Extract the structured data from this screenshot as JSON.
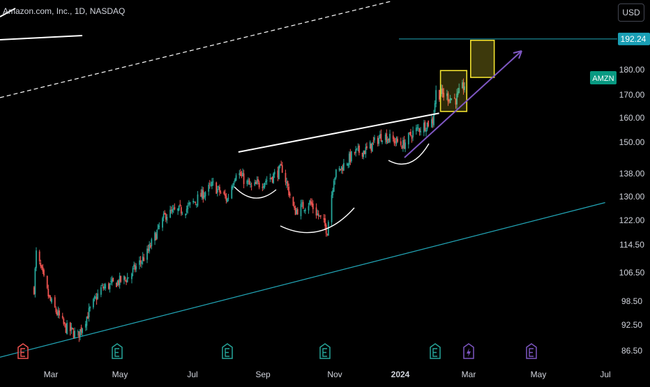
{
  "header": {
    "title": "Amazon.com, Inc., 1D, NASDAQ",
    "currency": "USD"
  },
  "colors": {
    "background": "#000000",
    "up": "#26a69a",
    "down": "#ef5350",
    "channel": "#22a7b8",
    "target_line": "#22a7b8",
    "price_badge": "#1a9fb5",
    "ticker_badge": "#089981",
    "box": "#f2e230",
    "arrow": "#7e57c2",
    "annotation": "#ffffff"
  },
  "chart_data": {
    "type": "candlestick",
    "symbol": "AMZN",
    "interval": "1D",
    "x_labels": [
      "Mar",
      "May",
      "Jul",
      "Sep",
      "Nov",
      "2024",
      "Mar",
      "May",
      "Jul"
    ],
    "y_ticks": [
      86.5,
      92.5,
      98.5,
      106.5,
      114.5,
      122.0,
      130.0,
      138.0,
      150.0,
      160.0,
      170.0,
      180.0
    ],
    "last_price_label": "AMZN",
    "target_price": "192.24",
    "approx_daily_closes": [
      {
        "x": "2023-02-01",
        "close": 102
      },
      {
        "x": "2023-02-03",
        "close": 112
      },
      {
        "x": "2023-02-15",
        "close": 99
      },
      {
        "x": "2023-03-01",
        "close": 92
      },
      {
        "x": "2023-03-13",
        "close": 90
      },
      {
        "x": "2023-04-03",
        "close": 102
      },
      {
        "x": "2023-04-27",
        "close": 105
      },
      {
        "x": "2023-05-15",
        "close": 112
      },
      {
        "x": "2023-06-01",
        "close": 124
      },
      {
        "x": "2023-06-20",
        "close": 126
      },
      {
        "x": "2023-07-14",
        "close": 134
      },
      {
        "x": "2023-07-27",
        "close": 129
      },
      {
        "x": "2023-08-04",
        "close": 139
      },
      {
        "x": "2023-08-18",
        "close": 133
      },
      {
        "x": "2023-09-06",
        "close": 137
      },
      {
        "x": "2023-09-15",
        "close": 140
      },
      {
        "x": "2023-09-26",
        "close": 125
      },
      {
        "x": "2023-10-10",
        "close": 128
      },
      {
        "x": "2023-10-26",
        "close": 119
      },
      {
        "x": "2023-11-01",
        "close": 137
      },
      {
        "x": "2023-11-20",
        "close": 146
      },
      {
        "x": "2023-12-01",
        "close": 147
      },
      {
        "x": "2023-12-15",
        "close": 153
      },
      {
        "x": "2024-01-03",
        "close": 149
      },
      {
        "x": "2024-01-12",
        "close": 154
      },
      {
        "x": "2024-01-30",
        "close": 159
      },
      {
        "x": "2024-02-02",
        "close": 171
      },
      {
        "x": "2024-02-20",
        "close": 168
      },
      {
        "x": "2024-02-28",
        "close": 174
      }
    ],
    "annotations": {
      "neckline": {
        "from": {
          "x": "2023-08-01",
          "y": 146
        },
        "to": {
          "x": "2024-02-01",
          "y": 162
        }
      },
      "channel_lower": {
        "from": {
          "x": "2023-01-20",
          "y": 85
        },
        "to": {
          "x": "2024-07-05",
          "y": 128
        }
      },
      "projection_arrow": {
        "from": {
          "x": "2024-01-20",
          "y": 148
        },
        "to": {
          "x": "2024-03-22",
          "y": 192
        }
      },
      "current_box": {
        "x_from": "2024-02-01",
        "x_to": "2024-03-01",
        "y_low": 164,
        "y_high": 178
      },
      "target_box": {
        "x_from": "2024-03-02",
        "x_to": "2024-03-26",
        "y_low": 180,
        "y_high": 192
      }
    }
  }
}
